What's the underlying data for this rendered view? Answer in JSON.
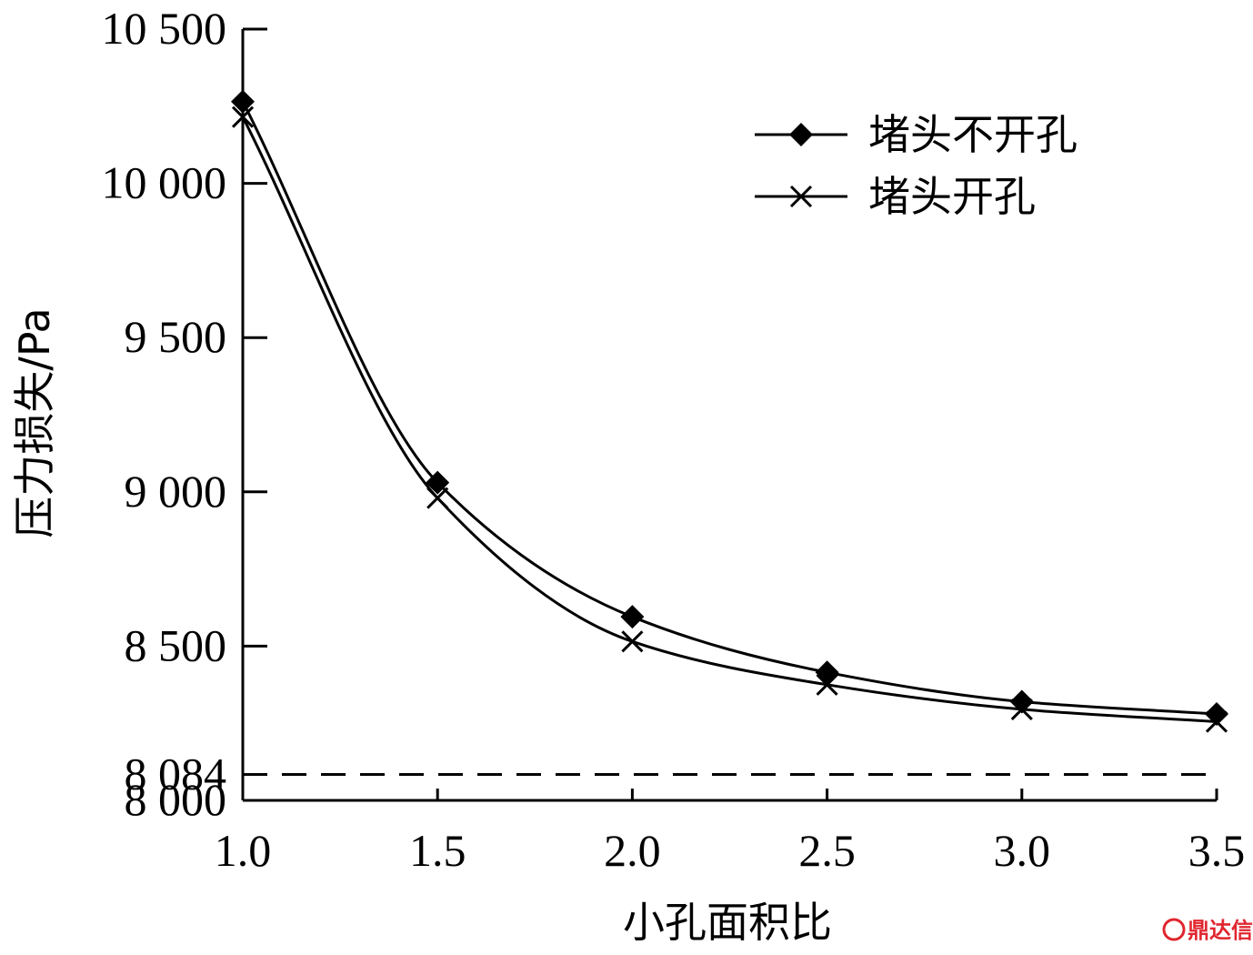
{
  "chart_data": {
    "type": "line",
    "xlabel": "小孔面积比",
    "ylabel": "压力损失/Pa",
    "xlim": [
      1.0,
      3.5
    ],
    "ylim": [
      8000,
      10500
    ],
    "x": [
      1.0,
      1.5,
      2.0,
      2.5,
      3.0,
      3.5
    ],
    "x_tick_labels": [
      "1.0",
      "1.5",
      "2.0",
      "2.5",
      "3.0",
      "3.5"
    ],
    "y_ticks": [
      8000,
      8084,
      8500,
      9000,
      9500,
      10000,
      10500
    ],
    "y_tick_labels": [
      "8 000",
      "8 084",
      "8 500",
      "9 000",
      "9 500",
      "10 000",
      "10 500"
    ],
    "series": [
      {
        "name": "堵头不开孔",
        "marker": "diamond",
        "values": [
          10265,
          9030,
          8595,
          8415,
          8320,
          8280
        ]
      },
      {
        "name": "堵头开孔",
        "marker": "x",
        "values": [
          10215,
          8980,
          8515,
          8375,
          8295,
          8255
        ]
      }
    ],
    "reference_line": {
      "value": 8084,
      "style": "dashed"
    },
    "legend_position": "top-right",
    "grid": false,
    "line_color": "#000000"
  },
  "watermark": {
    "text": "鼎达信",
    "icon": "logo-icon",
    "color": "#e0262f"
  }
}
